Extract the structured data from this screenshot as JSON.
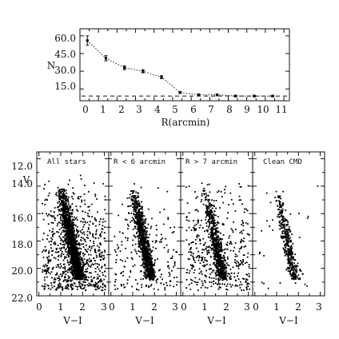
{
  "chart_data": [
    {
      "type": "line",
      "xlabel": "R(arcmin)",
      "ylabel": "N",
      "xlim": [
        0,
        11.3
      ],
      "ylim": [
        5,
        66
      ],
      "x_ticks": [
        "0",
        "1",
        "2",
        "3",
        "4",
        "5",
        "6",
        "7",
        "8",
        "9",
        "10",
        "11"
      ],
      "y_ticks": [
        "15.0",
        "30.0",
        "45.0",
        "60.0"
      ],
      "grid": false,
      "background_level": 9,
      "series": [
        {
          "x": [
            0.4,
            1.4,
            2.4,
            3.4,
            4.4,
            5.4,
            6.4,
            7.4,
            8.4,
            9.4,
            10.4
          ],
          "y": [
            56,
            41,
            33,
            30,
            25,
            12,
            10,
            10,
            9,
            9,
            9
          ],
          "yerr": [
            4,
            2.2,
            1.6,
            1.3,
            1.2,
            0.9,
            0.8,
            0.8,
            0.7,
            0.7,
            0.7
          ]
        }
      ]
    },
    {
      "type": "scatter",
      "xlabel": "V−I",
      "ylabel": "V",
      "xlim": [
        -0.1,
        3.2
      ],
      "ylim": [
        22.0,
        11.5
      ],
      "x_ticks": [
        "0",
        "1",
        "2",
        "3"
      ],
      "y_ticks": [
        "12.0",
        "14.0",
        "16.0",
        "18.0",
        "20.0",
        "22.0"
      ],
      "panels": [
        {
          "label": "All stars",
          "n_points": 2400
        },
        {
          "label": "R < 6 arcmin",
          "n_points": 1200
        },
        {
          "label": "R > 7 arcmin",
          "n_points": 1100
        },
        {
          "label": "Clean CMD",
          "n_points": 420
        }
      ]
    }
  ]
}
